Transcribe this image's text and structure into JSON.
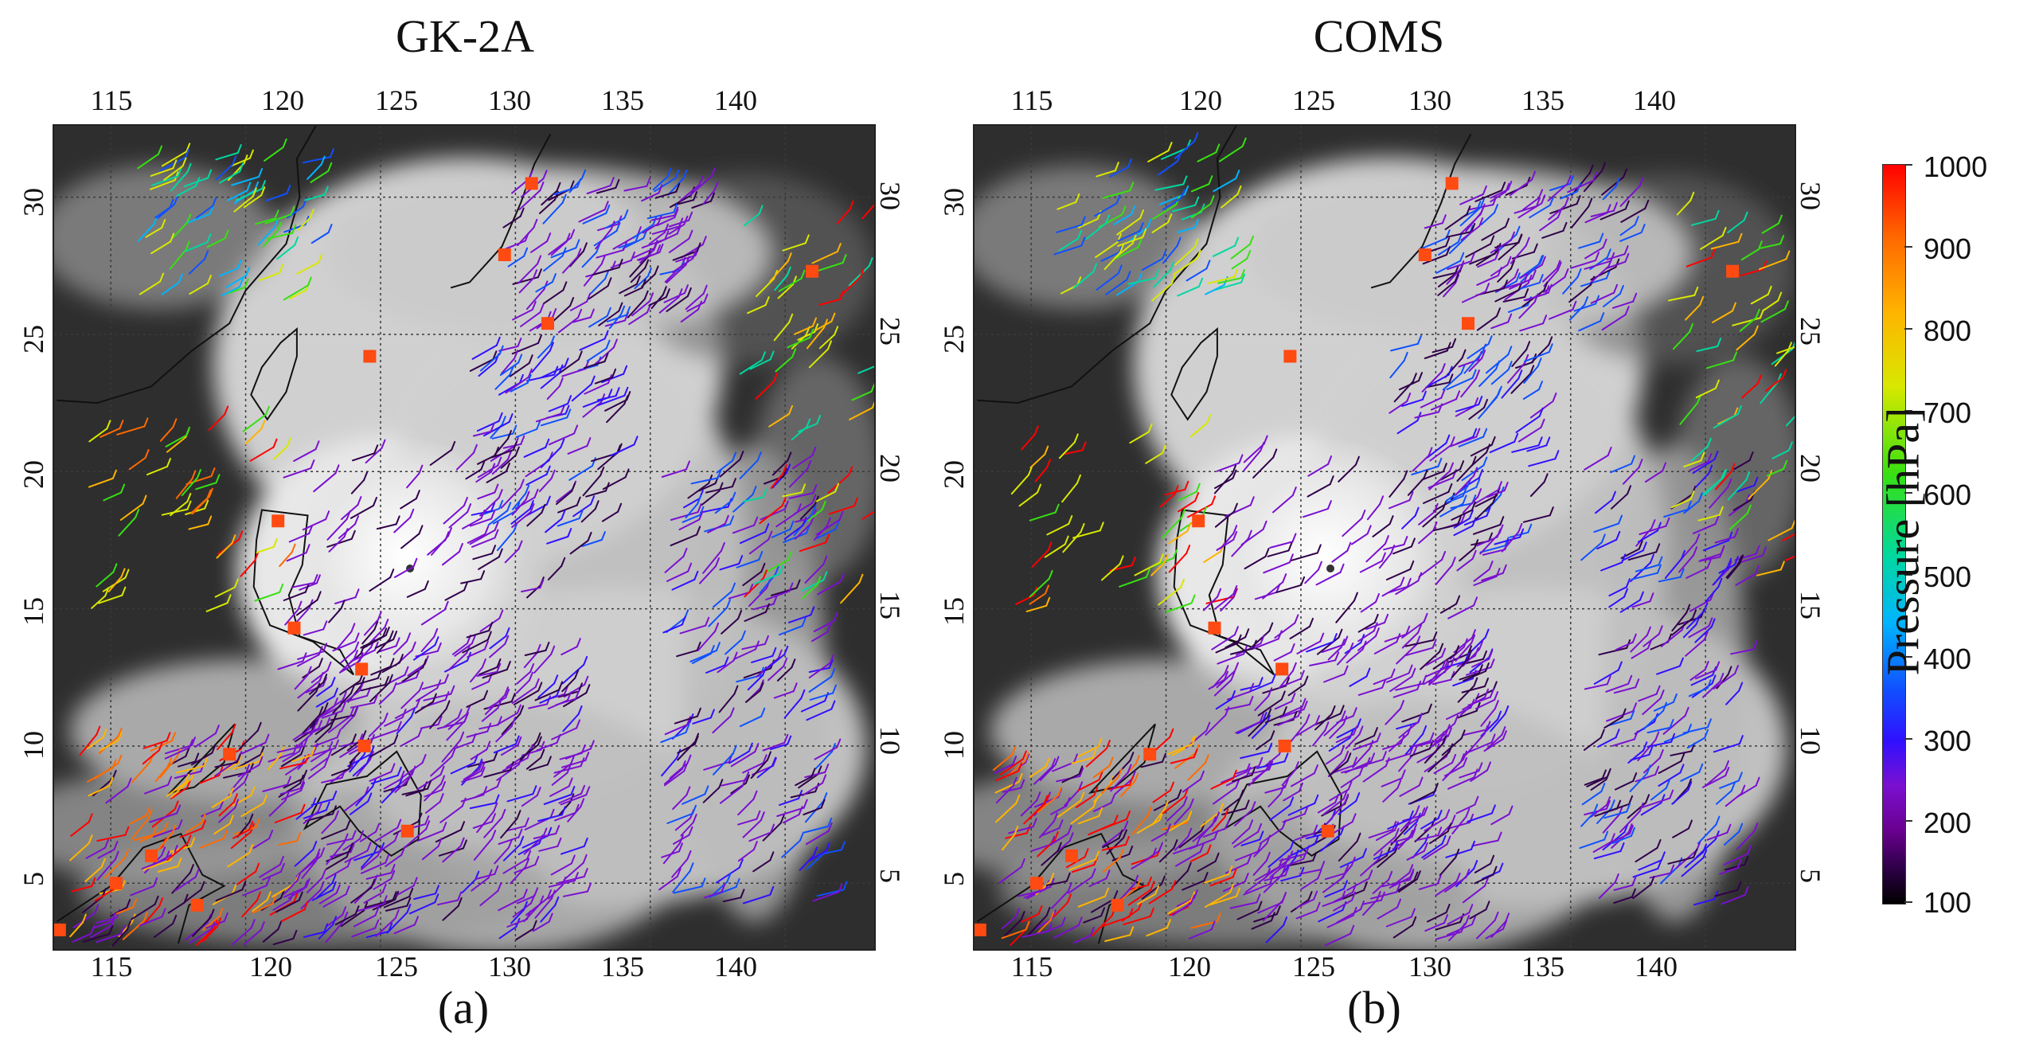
{
  "panels": [
    {
      "title": "GK-2A",
      "label": "(a)"
    },
    {
      "title": "COMS",
      "label": "(b)"
    }
  ],
  "axes": {
    "lon_top": [
      "115",
      "120",
      "125",
      "130",
      "135",
      "140"
    ],
    "lon_bottom": [
      "115",
      "120",
      "125",
      "130",
      "135",
      "140"
    ],
    "lat_left": [
      "30",
      "25",
      "20",
      "15",
      "10",
      "5"
    ],
    "lat_right": [
      "30",
      "25",
      "20",
      "15",
      "10",
      "5"
    ]
  },
  "colorbar": {
    "label": "Pressure [hPa]",
    "ticks": [
      "1000",
      "900",
      "800",
      "700",
      "600",
      "500",
      "400",
      "300",
      "200",
      "100"
    ],
    "colors": [
      "#ff0000",
      "#ff6a00",
      "#ffb400",
      "#d8e800",
      "#37e012",
      "#00d8a0",
      "#00b4ff",
      "#1050ff",
      "#3010ff",
      "#7a10d0",
      "#30004a",
      "#000000"
    ]
  },
  "markers": [
    {
      "lon": 113.1,
      "lat": 3.3
    },
    {
      "lon": 115.2,
      "lat": 5.0
    },
    {
      "lon": 116.5,
      "lat": 6.0
    },
    {
      "lon": 118.2,
      "lat": 4.2
    },
    {
      "lon": 119.4,
      "lat": 9.7
    },
    {
      "lon": 121.2,
      "lat": 18.2
    },
    {
      "lon": 121.8,
      "lat": 14.3
    },
    {
      "lon": 124.3,
      "lat": 12.8
    },
    {
      "lon": 124.4,
      "lat": 10.0
    },
    {
      "lon": 126.0,
      "lat": 6.9
    },
    {
      "lon": 124.6,
      "lat": 24.2
    },
    {
      "lon": 129.6,
      "lat": 27.9
    },
    {
      "lon": 131.2,
      "lat": 25.4
    },
    {
      "lon": 130.6,
      "lat": 30.5
    },
    {
      "lon": 141.0,
      "lat": 27.3
    }
  ]
}
